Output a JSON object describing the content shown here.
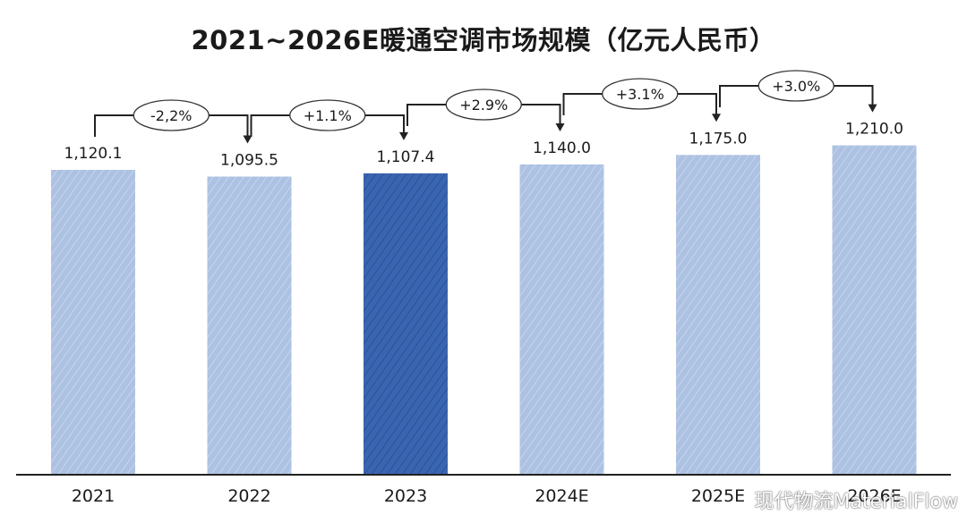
{
  "chart_data": {
    "type": "bar",
    "title": "2021~2026E暖通空调市场规模（亿元人民币）",
    "categories": [
      "2021",
      "2022",
      "2023",
      "2024E",
      "2025E",
      "2026E"
    ],
    "values": [
      1120.1,
      1095.5,
      1107.4,
      1140.0,
      1175.0,
      1210.0
    ],
    "value_labels": [
      "1,120.1",
      "1,095.5",
      "1,107.4",
      "1,140.0",
      "1,175.0",
      "1,210.0"
    ],
    "growth_labels": [
      "-2,2%",
      "+1.1%",
      "+2.9%",
      "+3.1%",
      "+3.0%"
    ],
    "highlight_index": 2,
    "colors": {
      "bar": "#adc2e2",
      "bar_hatch": "#c4d4ec",
      "highlight": "#3a65b0",
      "highlight_hatch": "#2d5299",
      "axis": "#222222",
      "text": "#1a1a1a"
    },
    "grid": false,
    "legend": "none"
  },
  "watermark": "现代物流MaterialFlow"
}
